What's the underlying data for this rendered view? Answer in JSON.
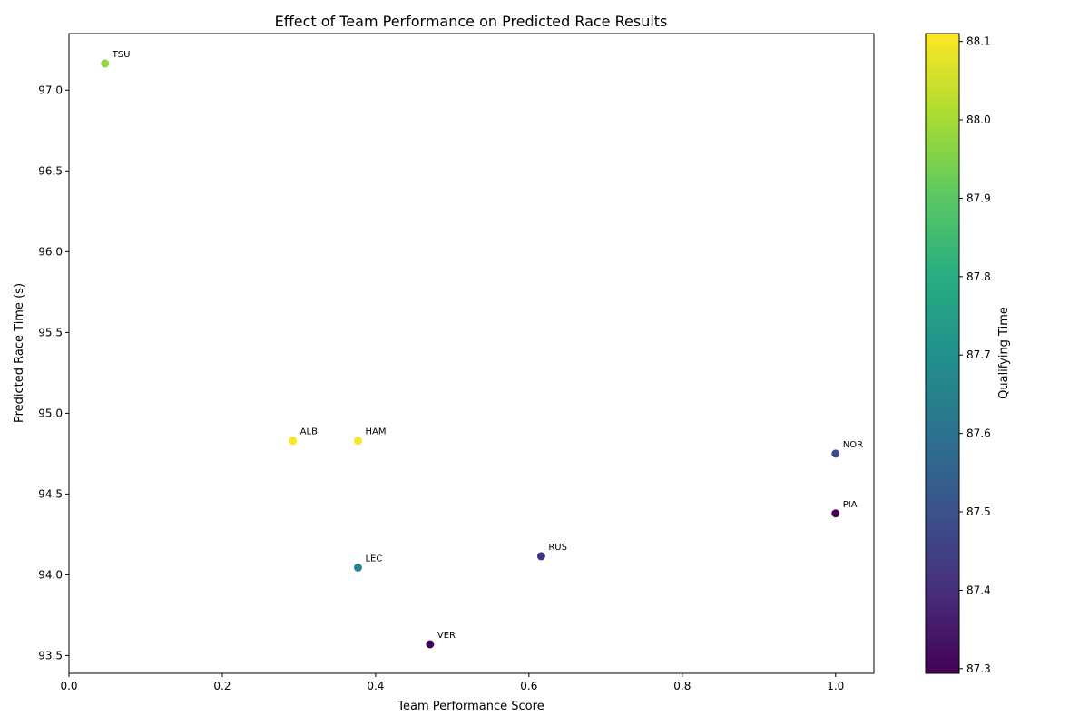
{
  "chart_data": {
    "type": "scatter",
    "title": "Effect of Team Performance on Predicted Race Results",
    "xlabel": "Team Performance Score",
    "ylabel": "Predicted Race Time (s)",
    "xlim": [
      0.0,
      1.05
    ],
    "ylim": [
      93.39,
      97.35
    ],
    "x_ticks": [
      "0.0",
      "0.2",
      "0.4",
      "0.6",
      "0.8",
      "1.0"
    ],
    "x_tick_values": [
      0.0,
      0.2,
      0.4,
      0.6,
      0.8,
      1.0
    ],
    "y_ticks": [
      "93.5",
      "94.0",
      "94.5",
      "95.0",
      "95.5",
      "96.0",
      "96.5",
      "97.0"
    ],
    "y_tick_values": [
      93.5,
      94.0,
      94.5,
      95.0,
      95.5,
      96.0,
      96.5,
      97.0
    ],
    "colorbar": {
      "label": "Qualifying Time",
      "colormap": "viridis",
      "range": [
        87.294,
        88.11
      ],
      "ticks": [
        "87.3",
        "87.4",
        "87.5",
        "87.6",
        "87.7",
        "87.8",
        "87.9",
        "88.0",
        "88.1"
      ],
      "tick_values": [
        87.3,
        87.4,
        87.5,
        87.6,
        87.7,
        87.8,
        87.9,
        88.0,
        88.1
      ]
    },
    "grid": false,
    "points": [
      {
        "label": "TSU",
        "x": 0.047,
        "y": 97.165,
        "color_value": 87.97
      },
      {
        "label": "ALB",
        "x": 0.292,
        "y": 94.83,
        "color_value": 88.11
      },
      {
        "label": "HAM",
        "x": 0.377,
        "y": 94.83,
        "color_value": 88.1
      },
      {
        "label": "NOR",
        "x": 1.0,
        "y": 94.75,
        "color_value": 87.48
      },
      {
        "label": "PIA",
        "x": 1.0,
        "y": 94.38,
        "color_value": 87.294
      },
      {
        "label": "RUS",
        "x": 0.616,
        "y": 94.115,
        "color_value": 87.41
      },
      {
        "label": "LEC",
        "x": 0.377,
        "y": 94.045,
        "color_value": 87.67
      },
      {
        "label": "VER",
        "x": 0.471,
        "y": 93.57,
        "color_value": 87.3
      }
    ]
  }
}
